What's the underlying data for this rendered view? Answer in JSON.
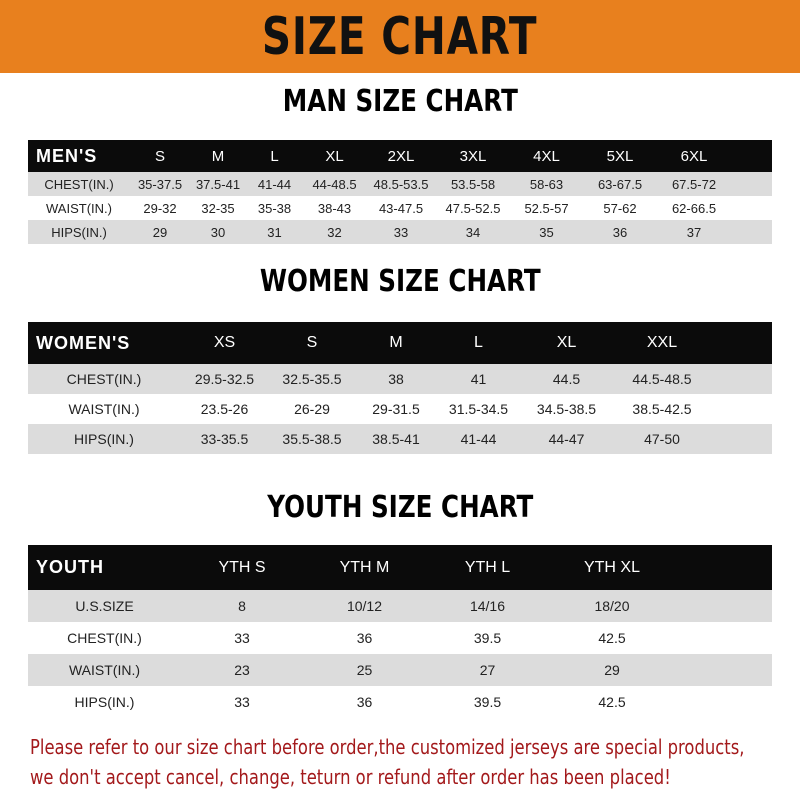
{
  "banner": {
    "title": "SIZE CHART",
    "color": "#e8801e"
  },
  "men": {
    "title": "MAN SIZE CHART",
    "header": [
      "MEN'S",
      "S",
      "M",
      "L",
      "XL",
      "2XL",
      "3XL",
      "4XL",
      "5XL",
      "6XL"
    ],
    "rows": [
      [
        "CHEST(IN.)",
        "35-37.5",
        "37.5-41",
        "41-44",
        "44-48.5",
        "48.5-53.5",
        "53.5-58",
        "58-63",
        "63-67.5",
        "67.5-72"
      ],
      [
        "WAIST(IN.)",
        "29-32",
        "32-35",
        "35-38",
        "38-43",
        "43-47.5",
        "47.5-52.5",
        "52.5-57",
        "57-62",
        "62-66.5"
      ],
      [
        "HIPS(IN.)",
        "29",
        "30",
        "31",
        "32",
        "33",
        "34",
        "35",
        "36",
        "37"
      ]
    ]
  },
  "women": {
    "title": "WOMEN SIZE CHART",
    "header": [
      "WOMEN'S",
      "XS",
      "S",
      "M",
      "L",
      "XL",
      "XXL"
    ],
    "rows": [
      [
        "CHEST(IN.)",
        "29.5-32.5",
        "32.5-35.5",
        "38",
        "41",
        "44.5",
        "44.5-48.5"
      ],
      [
        "WAIST(IN.)",
        "23.5-26",
        "26-29",
        "29-31.5",
        "31.5-34.5",
        "34.5-38.5",
        "38.5-42.5"
      ],
      [
        "HIPS(IN.)",
        "33-35.5",
        "35.5-38.5",
        "38.5-41",
        "41-44",
        "44-47",
        "47-50"
      ]
    ]
  },
  "youth": {
    "title": "YOUTH SIZE CHART",
    "header": [
      "YOUTH",
      "YTH S",
      "YTH M",
      "YTH L",
      "YTH XL"
    ],
    "rows": [
      [
        "U.S.SIZE",
        "8",
        "10/12",
        "14/16",
        "18/20"
      ],
      [
        "CHEST(IN.)",
        "33",
        "36",
        "39.5",
        "42.5"
      ],
      [
        "WAIST(IN.)",
        "23",
        "25",
        "27",
        "29"
      ],
      [
        "HIPS(IN.)",
        "33",
        "36",
        "39.5",
        "42.5"
      ]
    ]
  },
  "note": {
    "line1": "Please refer to our size chart before order,the customized jerseys are special products,",
    "line2": "we don't accept cancel, change, teturn or refund after order has been placed!",
    "color": "#a3191b"
  }
}
